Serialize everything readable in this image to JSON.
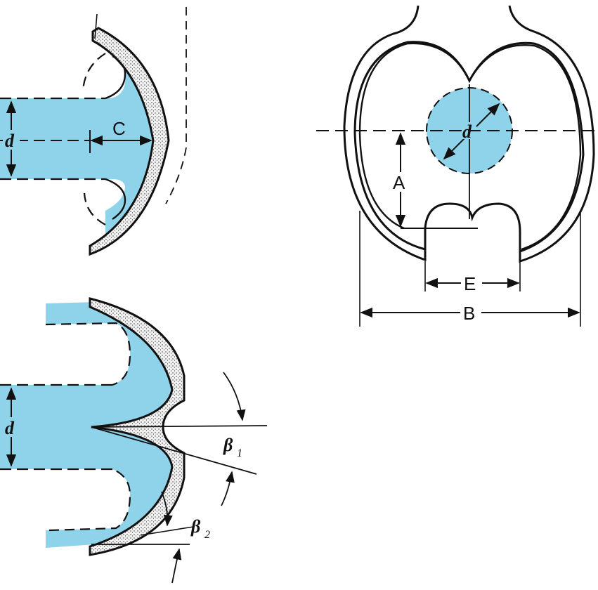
{
  "colors": {
    "fluid": "#8fd3ea",
    "metal_speckle": "#d9d9d9",
    "outline": "#141414",
    "background": "#ffffff"
  },
  "panels": {
    "pelton_cup_top": {
      "label_diameter": "d",
      "label_depth": "C"
    },
    "pelton_cup_bottom": {
      "label_diameter": "d",
      "beta_1": "β",
      "beta_1_sub": "1",
      "beta_2": "β",
      "beta_2_sub": "2"
    },
    "bucket_front": {
      "label_diameter": "d",
      "label_a": "A",
      "label_b": "B",
      "label_e": "E"
    }
  }
}
